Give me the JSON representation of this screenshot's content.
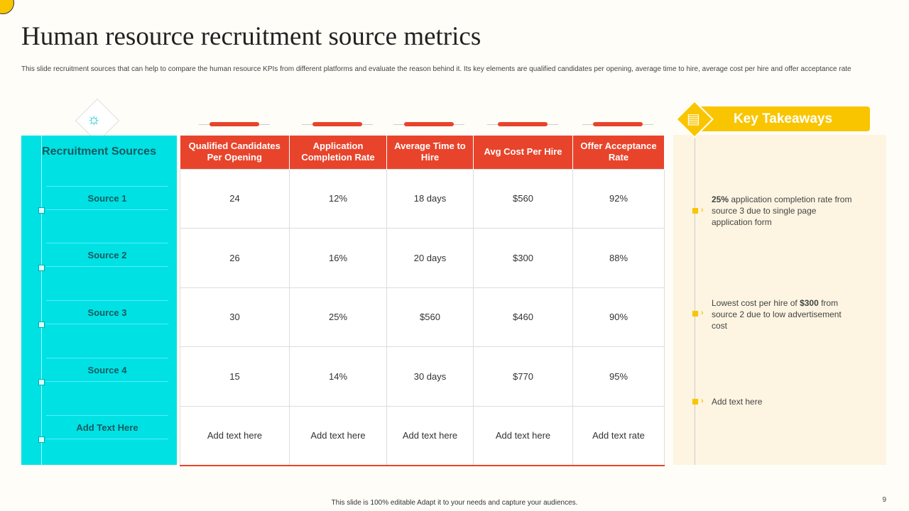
{
  "title": "Human resource recruitment source metrics",
  "description": "This slide recruitment sources that can help to compare the human resource KPIs  from different platforms and evaluate the reason behind it. Its key elements are qualified candidates per opening,  average time to hire, average cost per hire and offer acceptance rate",
  "left": {
    "title": "Recruitment Sources",
    "sources": [
      "Source 1",
      "Source 2",
      "Source 3",
      "Source 4",
      "Add  Text Here"
    ]
  },
  "table": {
    "headers": [
      "Qualified Candidates Per Opening",
      "Application Completion Rate",
      "Average Time to Hire",
      "Avg Cost Per Hire",
      "Offer Acceptance Rate"
    ],
    "rows": [
      [
        "24",
        "12%",
        "18 days",
        "$560",
        "92%"
      ],
      [
        "26",
        "16%",
        "20 days",
        "$300",
        "88%"
      ],
      [
        "30",
        "25%",
        "$560",
        "$460",
        "90%"
      ],
      [
        "15",
        "14%",
        "30 days",
        "$770",
        "95%"
      ],
      [
        "Add text here",
        "Add text here",
        "Add text here",
        "Add text here",
        "Add text rate"
      ]
    ]
  },
  "takeaways": {
    "title": "Key Takeaways",
    "items": [
      {
        "bold": "25%",
        "text": " application completion rate from source 3 due to single page application form"
      },
      {
        "pre": "Lowest cost per hire of ",
        "bold": "$300",
        "text": " from source 2 due to low advertisement  cost"
      },
      {
        "text": "Add text here"
      }
    ]
  },
  "footer": "This slide is 100% editable Adapt it to your needs and capture your audiences.",
  "page_number": "9",
  "colors": {
    "accent_red": "#e8442b",
    "cyan": "#00e1e4",
    "yellow": "#f9c500"
  }
}
